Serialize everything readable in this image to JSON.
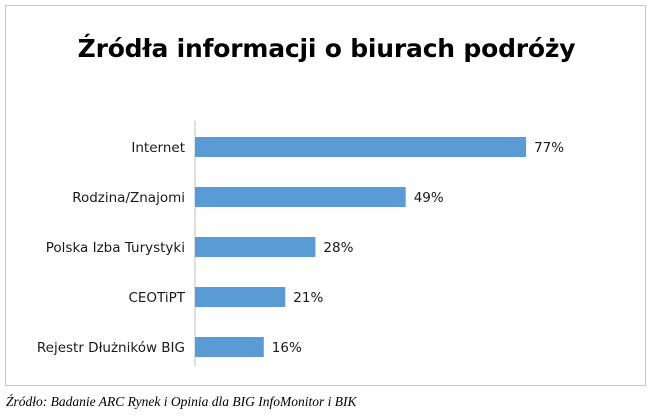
{
  "chart_data": {
    "type": "bar",
    "orientation": "horizontal",
    "title": "Źródła informacji o biurach podróży",
    "categories": [
      "Internet",
      "Rodzina/Znajomi",
      "Polska Izba Turystyki",
      "CEOTiPT",
      "Rejestr Dłużników BIG"
    ],
    "values": [
      77,
      49,
      28,
      21,
      16
    ],
    "value_labels": [
      "77%",
      "49%",
      "28%",
      "21%",
      "16%"
    ],
    "unit": "%",
    "xlim": [
      0,
      100
    ],
    "grid": false,
    "legend": "none",
    "bar_color": "#5b9bd5"
  },
  "source": "Źródło: Badanie ARC Rynek i Opinia dla BIG InfoMonitor i BIK"
}
